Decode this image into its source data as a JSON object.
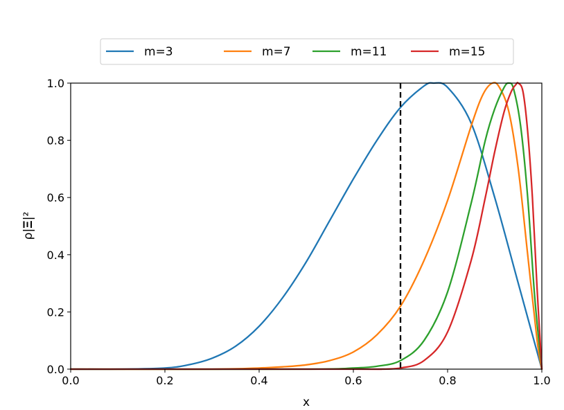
{
  "chart_data": {
    "type": "line",
    "xlabel": "x",
    "ylabel": "ρ|𝚵|²",
    "xlim": [
      0.0,
      1.0
    ],
    "ylim": [
      0.0,
      1.0
    ],
    "xticks": [
      "0.0",
      "0.2",
      "0.4",
      "0.6",
      "0.8",
      "1.0"
    ],
    "yticks": [
      "0.0",
      "0.2",
      "0.4",
      "0.6",
      "0.8",
      "1.0"
    ],
    "grid": false,
    "legend": "top-center, outside, 4 columns",
    "vline": {
      "x": 0.7,
      "style": "dashed",
      "color": "#000000"
    },
    "series": [
      {
        "name": "m=3",
        "color": "#1f77b4",
        "x": [
          0.0,
          0.1,
          0.2,
          0.25,
          0.3,
          0.35,
          0.4,
          0.45,
          0.5,
          0.55,
          0.6,
          0.65,
          0.7,
          0.75,
          0.77,
          0.8,
          0.85,
          0.9,
          0.95,
          1.0
        ],
        "y": [
          0.0,
          0.0,
          0.004,
          0.015,
          0.038,
          0.08,
          0.15,
          0.25,
          0.375,
          0.52,
          0.665,
          0.8,
          0.915,
          0.99,
          1.0,
          0.985,
          0.86,
          0.6,
          0.3,
          0.0
        ]
      },
      {
        "name": "m=7",
        "color": "#ff7f0e",
        "x": [
          0.0,
          0.3,
          0.4,
          0.45,
          0.5,
          0.55,
          0.6,
          0.65,
          0.7,
          0.75,
          0.8,
          0.85,
          0.875,
          0.895,
          0.91,
          0.93,
          0.95,
          0.97,
          0.99,
          1.0
        ],
        "y": [
          0.0,
          0.0,
          0.004,
          0.008,
          0.015,
          0.03,
          0.06,
          0.12,
          0.22,
          0.38,
          0.59,
          0.85,
          0.96,
          1.0,
          0.985,
          0.9,
          0.7,
          0.4,
          0.1,
          0.0
        ]
      },
      {
        "name": "m=11",
        "color": "#2ca02c",
        "x": [
          0.0,
          0.5,
          0.6,
          0.65,
          0.7,
          0.75,
          0.8,
          0.85,
          0.88,
          0.9,
          0.92,
          0.93,
          0.94,
          0.955,
          0.97,
          0.985,
          1.0
        ],
        "y": [
          0.0,
          0.0,
          0.004,
          0.01,
          0.03,
          0.1,
          0.27,
          0.58,
          0.8,
          0.91,
          0.985,
          1.0,
          0.98,
          0.85,
          0.6,
          0.25,
          0.0
        ]
      },
      {
        "name": "m=15",
        "color": "#d62728",
        "x": [
          0.0,
          0.6,
          0.65,
          0.7,
          0.75,
          0.8,
          0.85,
          0.88,
          0.9,
          0.92,
          0.935,
          0.945,
          0.95,
          0.96,
          0.97,
          0.98,
          0.99,
          1.0
        ],
        "y": [
          0.0,
          0.0,
          0.0,
          0.004,
          0.03,
          0.13,
          0.38,
          0.6,
          0.76,
          0.9,
          0.97,
          0.995,
          1.0,
          0.97,
          0.83,
          0.6,
          0.28,
          0.0
        ]
      }
    ]
  }
}
